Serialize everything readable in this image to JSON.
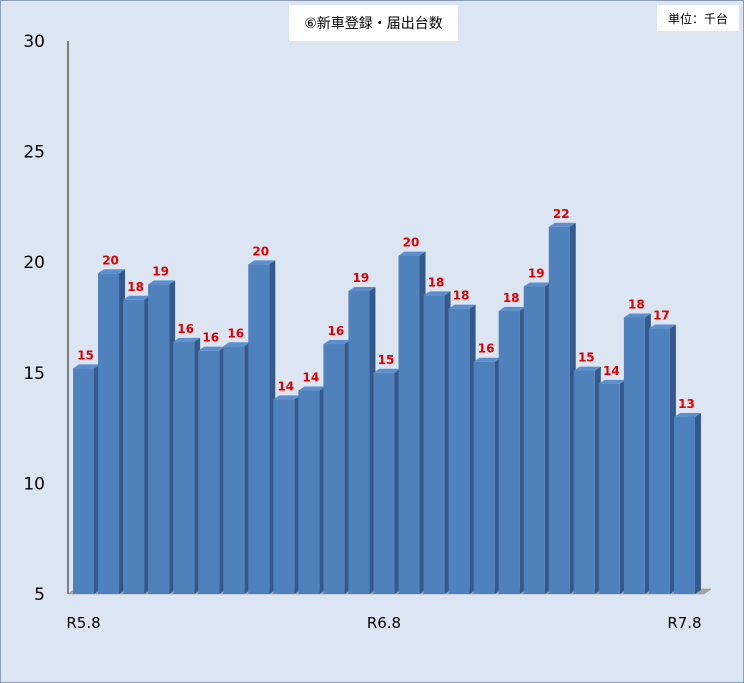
{
  "chart_data": {
    "type": "bar",
    "title": "⑥新車登録・届出台数",
    "unit": "単位：千台",
    "ylim": [
      5,
      30
    ],
    "yticks": [
      5,
      10,
      15,
      20,
      25,
      30
    ],
    "x_tick_labels": [
      {
        "index": 0,
        "label": "R5.8"
      },
      {
        "index": 12,
        "label": "R6.8"
      },
      {
        "index": 24,
        "label": "R7.8"
      }
    ],
    "values": [
      15.2,
      19.5,
      18.3,
      19.0,
      16.4,
      16.0,
      16.2,
      19.9,
      13.8,
      14.2,
      16.3,
      18.7,
      15.0,
      20.3,
      18.5,
      17.9,
      15.5,
      17.8,
      18.9,
      21.6,
      15.1,
      14.5,
      17.5,
      17.0,
      13.0
    ],
    "data_labels": [
      "15",
      "20",
      "18",
      "19",
      "16",
      "16",
      "16",
      "20",
      "14",
      "14",
      "16",
      "19",
      "15",
      "20",
      "18",
      "18",
      "16",
      "18",
      "19",
      "22",
      "15",
      "14",
      "18",
      "17",
      "13"
    ],
    "colors": {
      "bar_front": "#4f81bd",
      "bar_side": "#34598a",
      "bar_top": "#5d8fcf",
      "label": "#e00000"
    },
    "grid": false,
    "legend": "none"
  }
}
